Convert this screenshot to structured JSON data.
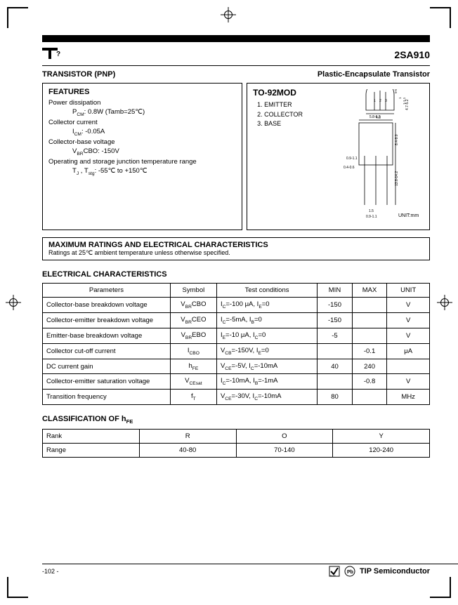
{
  "header": {
    "logo_text": "T",
    "part_number": "2SA910"
  },
  "subheader": {
    "left": "TRANSISTOR (PNP)",
    "right": "Plastic-Encapsulate Transistor"
  },
  "features": {
    "title": "FEATURES",
    "items": [
      {
        "label": "Power dissipation",
        "sub": "P_CM: 0.8W (Tamb=25℃)"
      },
      {
        "label": "Collector current",
        "sub": "I_CM: -0.05A"
      },
      {
        "label": "Collector-base voltage",
        "sub": "V_(BR)CBO: -150V"
      },
      {
        "label": "Operating and storage junction temperature range",
        "sub": "T_J , T_stg: -55℃  to +150℃"
      }
    ]
  },
  "package": {
    "name": "TO-92MOD",
    "pins": [
      "1.  EMITTER",
      "2.  COLLECTOR",
      "3.  BASE"
    ],
    "unit_label": "UNIT:mm",
    "drawing": {
      "top_radius_dims": [
        "0-0.3",
        "1",
        "1-1.1"
      ],
      "top_width": "4.0",
      "top_height": "4.7-5.2",
      "body_width": "5.8-6.2",
      "body_height": "8.4-9.0",
      "body_left": "0.9-1.1",
      "body_bottom_left": "0.4-0.6",
      "lead_len": "13.8-14.2",
      "lead_bot1": "1.5",
      "lead_bot2": "0.9-1.1",
      "pin_labels": [
        "1",
        "2",
        "3"
      ]
    }
  },
  "max_ratings": {
    "title": "MAXIMUM RATINGS AND ELECTRICAL CHARACTERISTICS",
    "subtitle": "Ratings at 25℃  ambient temperature unless otherwise specified."
  },
  "electrical": {
    "title": "ELECTRICAL CHARACTERISTICS",
    "columns": [
      "Parameters",
      "Symbol",
      "Test conditions",
      "MIN",
      "MAX",
      "UNIT"
    ],
    "col_widths": [
      "33%",
      "12%",
      "26%",
      "9%",
      "9%",
      "11%"
    ],
    "rows": [
      {
        "p": "Collector-base breakdown voltage",
        "s": "V_(BR)CBO",
        "t": "I_C=-100 μA, I_E=0",
        "min": "-150",
        "max": "",
        "u": "V"
      },
      {
        "p": "Collector-emitter breakdown voltage",
        "s": "V_(BR)CEO",
        "t": "I_C=-5mA, I_B=0",
        "min": "-150",
        "max": "",
        "u": "V"
      },
      {
        "p": "Emitter-base breakdown voltage",
        "s": "V_(BR)EBO",
        "t": "I_E=-10 μA, I_C=0",
        "min": "-5",
        "max": "",
        "u": "V"
      },
      {
        "p": "Collector cut-off current",
        "s": "I_CBO",
        "t": "V_CB=-150V, I_E=0",
        "min": "",
        "max": "-0.1",
        "u": "μA"
      },
      {
        "p": "DC current gain",
        "s": "h_FE",
        "t": "V_CE=-5V, I_C=-10mA",
        "min": "40",
        "max": "240",
        "u": ""
      },
      {
        "p": "Collector-emitter saturation voltage",
        "s": "V_CEsat",
        "t": "I_C=-10mA, I_B=-1mA",
        "min": "",
        "max": "-0.8",
        "u": "V"
      },
      {
        "p": "Transition frequency",
        "s": "f_T",
        "t": "V_CE=-30V, I_C=-10mA",
        "min": "80",
        "max": "",
        "u": "MHz"
      }
    ]
  },
  "classification": {
    "title": "CLASSIFICATION OF h_FE",
    "rows": [
      [
        "Rank",
        "R",
        "O",
        "Y"
      ],
      [
        "Range",
        "40-80",
        "70-140",
        "120-240"
      ]
    ],
    "col_widths": [
      "25%",
      "25%",
      "25%",
      "25%"
    ]
  },
  "footer": {
    "page_num": "-102 -",
    "brand": "TIP Semiconductor",
    "rohs": "RoHS",
    "pbfree": "Pb"
  },
  "colors": {
    "fg": "#000000",
    "bg": "#ffffff",
    "line": "#000000"
  }
}
